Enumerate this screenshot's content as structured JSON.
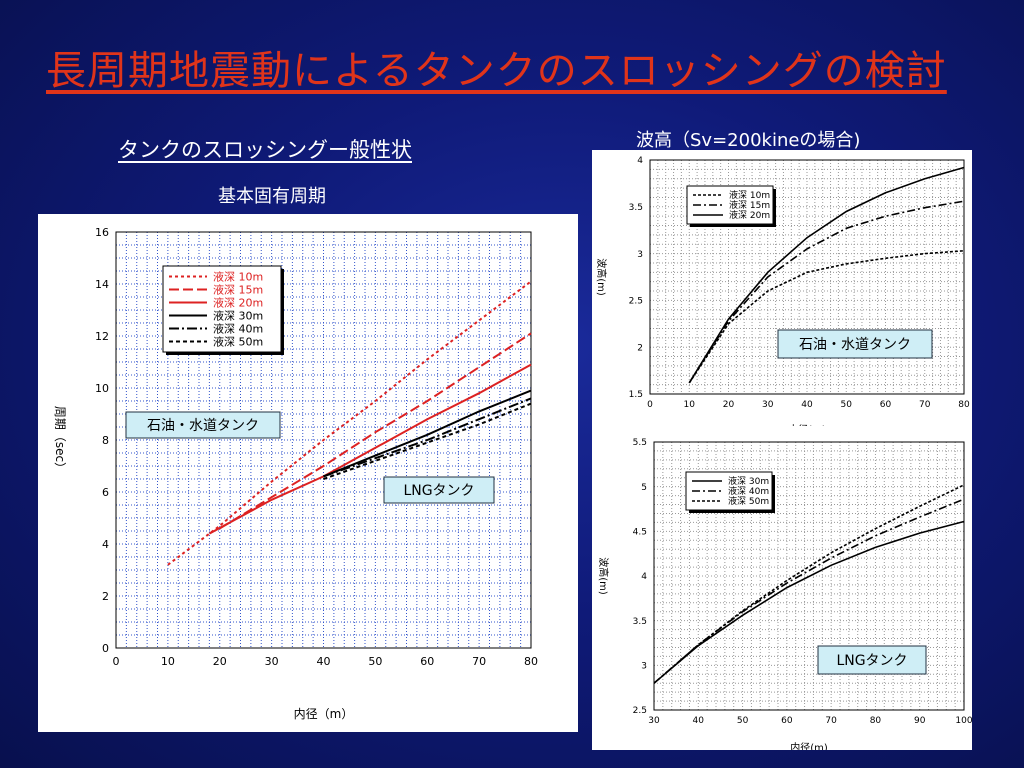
{
  "slide": {
    "title": "長周期地震動によるタンクのスロッシングの検討",
    "subtitle_left": "タンクのスロッシングー般性状",
    "subtitle_left2": "基本固有周期",
    "subtitle_right": "波高（Sv=200kineの場合)"
  },
  "chart_data": [
    {
      "type": "line",
      "xlabel": "内径（m）",
      "ylabel": "周期（sec）",
      "xlim": [
        0,
        80
      ],
      "ylim": [
        0,
        16
      ],
      "xticks": [
        0,
        10,
        20,
        30,
        40,
        50,
        60,
        70,
        80
      ],
      "yticks": [
        0,
        2,
        4,
        6,
        8,
        10,
        12,
        14,
        16
      ],
      "grid": true,
      "legend_position": "top-left",
      "annotations": [
        "石油・水道タンク",
        "LNGタンク"
      ],
      "series": [
        {
          "name": "液深 10m",
          "color": "#dd2222",
          "dash": "3,3",
          "x": [
            10,
            20,
            30,
            40,
            50,
            60,
            70,
            80
          ],
          "y": [
            3.2,
            4.7,
            6.4,
            8.0,
            9.5,
            11.1,
            12.6,
            14.1
          ]
        },
        {
          "name": "液深 15m",
          "color": "#dd2222",
          "dash": "10,4",
          "x": [
            20,
            30,
            40,
            50,
            60,
            70,
            80
          ],
          "y": [
            4.6,
            5.8,
            7.0,
            8.3,
            9.5,
            10.8,
            12.1
          ]
        },
        {
          "name": "液深 20m",
          "color": "#dd2222",
          "dash": "",
          "x": [
            18,
            30,
            40,
            50,
            60,
            70,
            80
          ],
          "y": [
            4.4,
            5.7,
            6.6,
            7.7,
            8.8,
            9.8,
            10.9
          ]
        },
        {
          "name": "液深 30m",
          "color": "#000000",
          "dash": "",
          "x": [
            40,
            50,
            60,
            70,
            80
          ],
          "y": [
            6.6,
            7.4,
            8.2,
            9.1,
            9.9
          ]
        },
        {
          "name": "液深 40m",
          "color": "#000000",
          "dash": "10,3,2,3",
          "x": [
            40,
            50,
            60,
            70,
            80
          ],
          "y": [
            6.6,
            7.3,
            8.0,
            8.8,
            9.6
          ]
        },
        {
          "name": "液深 50m",
          "color": "#000000",
          "dash": "4,3",
          "x": [
            40,
            50,
            60,
            70,
            80
          ],
          "y": [
            6.5,
            7.2,
            7.9,
            8.6,
            9.4
          ]
        }
      ]
    },
    {
      "type": "line",
      "xlabel": "内径(m)",
      "ylabel": "波高(m)",
      "xlim": [
        0,
        80
      ],
      "ylim": [
        1.5,
        4
      ],
      "xticks": [
        0,
        10,
        20,
        30,
        40,
        50,
        60,
        70,
        80
      ],
      "yticks": [
        1.5,
        2,
        2.5,
        3,
        3.5,
        4
      ],
      "grid": true,
      "legend_position": "top-left",
      "annotations": [
        "石油・水道タンク"
      ],
      "series": [
        {
          "name": "液深 10m",
          "dash": "3,2",
          "x": [
            10,
            20,
            30,
            40,
            50,
            60,
            70,
            80
          ],
          "y": [
            1.62,
            2.25,
            2.6,
            2.8,
            2.89,
            2.95,
            3.0,
            3.03
          ]
        },
        {
          "name": "液深 15m",
          "dash": "8,3,2,3",
          "x": [
            10,
            20,
            30,
            40,
            50,
            60,
            70,
            80
          ],
          "y": [
            1.62,
            2.28,
            2.75,
            3.05,
            3.27,
            3.4,
            3.49,
            3.56
          ]
        },
        {
          "name": "液深 20m",
          "dash": "",
          "x": [
            10,
            20,
            30,
            40,
            50,
            60,
            70,
            80
          ],
          "y": [
            1.62,
            2.3,
            2.8,
            3.17,
            3.45,
            3.65,
            3.8,
            3.92
          ]
        }
      ]
    },
    {
      "type": "line",
      "xlabel": "内径(m)",
      "ylabel": "波高(m)",
      "xlim": [
        30,
        100
      ],
      "ylim": [
        2.5,
        5.5
      ],
      "xticks": [
        30,
        40,
        50,
        60,
        70,
        80,
        90,
        100
      ],
      "yticks": [
        2.5,
        3,
        3.5,
        4,
        4.5,
        5,
        5.5
      ],
      "grid": true,
      "legend_position": "top-left",
      "annotations": [
        "LNGタンク"
      ],
      "series": [
        {
          "name": "液深 30m",
          "dash": "",
          "x": [
            30,
            40,
            50,
            60,
            70,
            80,
            90,
            100
          ],
          "y": [
            2.8,
            3.22,
            3.56,
            3.87,
            4.12,
            4.32,
            4.48,
            4.61
          ]
        },
        {
          "name": "液深 40m",
          "dash": "8,3,2,3",
          "x": [
            30,
            40,
            50,
            60,
            70,
            80,
            90,
            100
          ],
          "y": [
            2.8,
            3.23,
            3.6,
            3.92,
            4.2,
            4.45,
            4.66,
            4.86
          ]
        },
        {
          "name": "液深 50m",
          "dash": "3,2",
          "x": [
            30,
            40,
            50,
            60,
            70,
            80,
            90,
            100
          ],
          "y": [
            2.8,
            3.23,
            3.61,
            3.95,
            4.26,
            4.53,
            4.78,
            5.02
          ]
        }
      ]
    }
  ]
}
